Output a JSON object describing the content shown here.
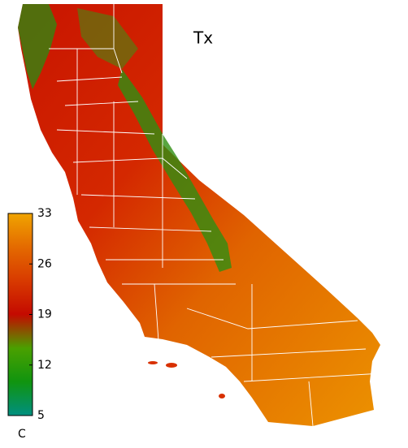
{
  "map": {
    "title": "Tx",
    "colorbar": {
      "lim": [
        5,
        33
      ],
      "ticks": [
        5,
        12,
        19,
        26,
        33
      ],
      "unit": "C",
      "colors": [
        "#008f80",
        "#10940f",
        "#4aa000",
        "#c40a00",
        "#d83a00",
        "#e46a00",
        "#f0a400"
      ]
    }
  }
}
